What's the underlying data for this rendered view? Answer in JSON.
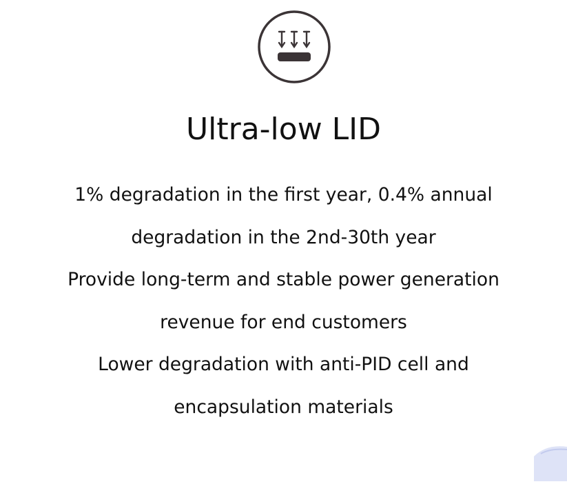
{
  "feature": {
    "icon": "light-arrows-onto-panel-icon",
    "title": "Ultra-low LID",
    "lines": [
      "1% degradation in the first year, 0.4% annual",
      "degradation in the 2nd-30th year",
      "Provide long-term and stable power generation",
      "revenue for end customers",
      "Lower degradation with anti-PID cell and",
      "encapsulation materials"
    ]
  },
  "colors": {
    "text": "#111111",
    "icon": "#3b3436",
    "corner_decoration": "#d6dcf5"
  }
}
